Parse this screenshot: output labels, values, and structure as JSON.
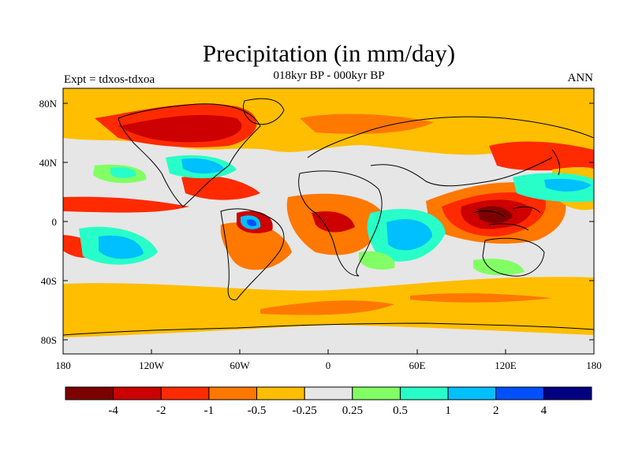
{
  "header": {
    "title": "Precipitation (in mm/day)",
    "subtitle": "018kyr BP - 000kyr BP",
    "left_label": "Expt = tdxos-tdxoa",
    "right_label": "ANN"
  },
  "map": {
    "y_ticks": [
      "80N",
      "40N",
      "0",
      "40S",
      "80S"
    ],
    "x_ticks": [
      "180",
      "120W",
      "60W",
      "0",
      "60E",
      "120E",
      "180"
    ],
    "ocean_land_neutral_color": "#e6e6e6",
    "coastline_color": "#000000"
  },
  "colorbar": {
    "colors": [
      "#7d0000",
      "#cc0000",
      "#ff2a00",
      "#ff7800",
      "#ffbe00",
      "#e6e6e6",
      "#82ff64",
      "#28ffc8",
      "#00c0ff",
      "#0050ff",
      "#000080"
    ],
    "labels": [
      "-4",
      "-2",
      "-1",
      "-0.5",
      "-0.25",
      "0.25",
      "0.5",
      "1",
      "2",
      "4"
    ]
  }
}
